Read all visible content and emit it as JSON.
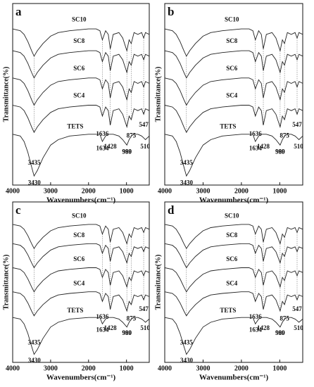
{
  "chart_data": [
    {
      "type": "line",
      "panel_label": "a",
      "x_label": "Wavenumbers(cm⁻¹)",
      "y_label": "Transmittance(%)",
      "xlim": [
        4000,
        400
      ],
      "ylim": [
        0,
        100
      ],
      "xticks": [
        4000,
        3000,
        2000,
        1000
      ],
      "x": [
        4000,
        3800,
        3700,
        3600,
        3500,
        3435,
        3350,
        3200,
        3000,
        2800,
        2500,
        2000,
        1800,
        1700,
        1636,
        1550,
        1480,
        1428,
        1350,
        1200,
        1100,
        990,
        930,
        875,
        800,
        700,
        600,
        547,
        500,
        400
      ],
      "series": [
        {
          "name": "SC10",
          "color": "#222222",
          "values": [
            86,
            85,
            83,
            79,
            74,
            71,
            74,
            78,
            82,
            84,
            85,
            86,
            86,
            85,
            80,
            85,
            83,
            75,
            83,
            84,
            81,
            74,
            80,
            78,
            84,
            83,
            84,
            81,
            84,
            83
          ]
        },
        {
          "name": "SC8",
          "color": "#222222",
          "values": [
            74,
            73,
            71,
            67,
            62,
            59,
            62,
            66,
            70,
            72,
            73,
            74,
            74,
            73,
            68,
            73,
            71,
            63,
            71,
            72,
            69,
            62,
            68,
            66,
            72,
            71,
            72,
            69,
            72,
            71
          ]
        },
        {
          "name": "SC6",
          "color": "#222222",
          "values": [
            59,
            58,
            56,
            52,
            47,
            44,
            47,
            51,
            55,
            57,
            58,
            59,
            59,
            58,
            53,
            58,
            56,
            48,
            56,
            57,
            54,
            47,
            53,
            51,
            57,
            56,
            57,
            54,
            57,
            56
          ]
        },
        {
          "name": "SC4",
          "color": "#222222",
          "values": [
            44,
            43,
            41,
            37,
            32,
            29,
            32,
            36,
            40,
            42,
            43,
            44,
            44,
            43,
            38,
            43,
            41,
            33,
            41,
            42,
            39,
            32,
            38,
            36,
            42,
            41,
            42,
            39,
            42,
            41
          ]
        },
        {
          "name": "TETS",
          "color": "#222222",
          "values": [
            28,
            27,
            24,
            18,
            10,
            5,
            8,
            15,
            22,
            25,
            27,
            28,
            28,
            28,
            24,
            27,
            28,
            28,
            28,
            27,
            25,
            22,
            25,
            27,
            28,
            28,
            27,
            26,
            25,
            27
          ]
        }
      ],
      "peaks": [
        3435,
        1636,
        1428,
        990,
        875,
        547
      ],
      "tets_peaks": [
        3430,
        1634,
        989,
        510
      ]
    },
    {
      "type": "line",
      "panel_label": "b",
      "x_label": "Wavenumbers(cm⁻¹)",
      "y_label": "Transmittance(%)",
      "xlim": [
        4000,
        400
      ],
      "ylim": [
        0,
        100
      ],
      "xticks": [
        4000,
        3000,
        2000,
        1000
      ],
      "x": [
        4000,
        3800,
        3700,
        3600,
        3500,
        3435,
        3350,
        3200,
        3000,
        2800,
        2500,
        2000,
        1800,
        1700,
        1636,
        1550,
        1480,
        1428,
        1350,
        1200,
        1100,
        990,
        930,
        875,
        800,
        700,
        600,
        547,
        500,
        400
      ],
      "series": [
        {
          "name": "SC10",
          "color": "#222222",
          "values": [
            86,
            85,
            83,
            79,
            74,
            71,
            74,
            78,
            82,
            84,
            85,
            86,
            86,
            85,
            80,
            85,
            83,
            75,
            83,
            84,
            81,
            74,
            80,
            78,
            84,
            83,
            84,
            81,
            84,
            83
          ]
        },
        {
          "name": "SC8",
          "color": "#222222",
          "values": [
            74,
            73,
            71,
            67,
            62,
            59,
            62,
            66,
            70,
            72,
            73,
            74,
            74,
            73,
            68,
            73,
            71,
            63,
            71,
            72,
            69,
            62,
            68,
            66,
            72,
            71,
            72,
            69,
            72,
            71
          ]
        },
        {
          "name": "SC6",
          "color": "#222222",
          "values": [
            59,
            58,
            56,
            52,
            47,
            44,
            47,
            51,
            55,
            57,
            58,
            59,
            59,
            58,
            53,
            58,
            56,
            48,
            56,
            57,
            54,
            47,
            53,
            51,
            57,
            56,
            57,
            54,
            57,
            56
          ]
        },
        {
          "name": "SC4",
          "color": "#222222",
          "values": [
            44,
            43,
            41,
            37,
            32,
            29,
            32,
            36,
            40,
            42,
            43,
            44,
            44,
            43,
            38,
            43,
            41,
            33,
            41,
            42,
            39,
            32,
            38,
            36,
            42,
            41,
            42,
            39,
            42,
            41
          ]
        },
        {
          "name": "TETS",
          "color": "#222222",
          "values": [
            28,
            27,
            24,
            18,
            10,
            5,
            8,
            15,
            22,
            25,
            27,
            28,
            28,
            28,
            24,
            27,
            28,
            28,
            28,
            27,
            25,
            22,
            25,
            27,
            28,
            28,
            27,
            26,
            25,
            27
          ]
        }
      ],
      "peaks": [
        3435,
        1636,
        1428,
        990,
        875,
        547
      ],
      "tets_peaks": [
        3430,
        1634,
        989,
        510
      ]
    },
    {
      "type": "line",
      "panel_label": "c",
      "x_label": "Wavenumbers(cm⁻¹)",
      "y_label": "Transmittance(%)",
      "xlim": [
        4000,
        400
      ],
      "ylim": [
        0,
        100
      ],
      "xticks": [
        4000,
        3000,
        2000,
        1000
      ],
      "x": [
        4000,
        3800,
        3700,
        3600,
        3500,
        3435,
        3350,
        3200,
        3000,
        2800,
        2500,
        2000,
        1800,
        1700,
        1636,
        1550,
        1480,
        1428,
        1350,
        1200,
        1100,
        990,
        930,
        875,
        800,
        700,
        600,
        547,
        500,
        400
      ],
      "series": [
        {
          "name": "SC10",
          "color": "#222222",
          "values": [
            86,
            85,
            83,
            79,
            74,
            71,
            74,
            78,
            82,
            84,
            85,
            86,
            86,
            85,
            80,
            85,
            83,
            75,
            83,
            84,
            81,
            74,
            80,
            78,
            84,
            83,
            84,
            81,
            84,
            83
          ]
        },
        {
          "name": "SC8",
          "color": "#222222",
          "values": [
            74,
            73,
            71,
            67,
            62,
            59,
            62,
            66,
            70,
            72,
            73,
            74,
            74,
            73,
            68,
            73,
            71,
            63,
            71,
            72,
            69,
            62,
            68,
            66,
            72,
            71,
            72,
            69,
            72,
            71
          ]
        },
        {
          "name": "SC6",
          "color": "#222222",
          "values": [
            59,
            58,
            56,
            52,
            47,
            44,
            47,
            51,
            55,
            57,
            58,
            59,
            59,
            58,
            53,
            58,
            56,
            48,
            56,
            57,
            54,
            47,
            53,
            51,
            57,
            56,
            57,
            54,
            57,
            56
          ]
        },
        {
          "name": "SC4",
          "color": "#222222",
          "values": [
            44,
            43,
            41,
            37,
            32,
            29,
            32,
            36,
            40,
            42,
            43,
            44,
            44,
            43,
            38,
            43,
            41,
            33,
            41,
            42,
            39,
            32,
            38,
            36,
            42,
            41,
            42,
            39,
            42,
            41
          ]
        },
        {
          "name": "TETS",
          "color": "#222222",
          "values": [
            28,
            27,
            24,
            18,
            10,
            5,
            8,
            15,
            22,
            25,
            27,
            28,
            28,
            28,
            24,
            27,
            28,
            28,
            28,
            27,
            25,
            22,
            25,
            27,
            28,
            28,
            27,
            26,
            25,
            27
          ]
        }
      ],
      "peaks": [
        3435,
        1636,
        1428,
        990,
        875,
        547
      ],
      "tets_peaks": [
        3430,
        1634,
        989,
        510
      ]
    },
    {
      "type": "line",
      "panel_label": "d",
      "x_label": "Wavenumbers(cm⁻¹)",
      "y_label": "Transmittance(%)",
      "xlim": [
        4000,
        400
      ],
      "ylim": [
        0,
        100
      ],
      "xticks": [
        4000,
        3000,
        2000,
        1000
      ],
      "x": [
        4000,
        3800,
        3700,
        3600,
        3500,
        3435,
        3350,
        3200,
        3000,
        2800,
        2500,
        2000,
        1800,
        1700,
        1636,
        1550,
        1480,
        1428,
        1350,
        1200,
        1100,
        990,
        930,
        875,
        800,
        700,
        600,
        547,
        500,
        400
      ],
      "series": [
        {
          "name": "SC10",
          "color": "#222222",
          "values": [
            86,
            85,
            83,
            79,
            74,
            71,
            74,
            78,
            82,
            84,
            85,
            86,
            86,
            85,
            80,
            85,
            83,
            75,
            83,
            84,
            81,
            74,
            80,
            78,
            84,
            83,
            84,
            81,
            84,
            83
          ]
        },
        {
          "name": "SC8",
          "color": "#222222",
          "values": [
            74,
            73,
            71,
            67,
            62,
            59,
            62,
            66,
            70,
            72,
            73,
            74,
            74,
            73,
            68,
            73,
            71,
            63,
            71,
            72,
            69,
            62,
            68,
            66,
            72,
            71,
            72,
            69,
            72,
            71
          ]
        },
        {
          "name": "SC6",
          "color": "#222222",
          "values": [
            59,
            58,
            56,
            52,
            47,
            44,
            47,
            51,
            55,
            57,
            58,
            59,
            59,
            58,
            53,
            58,
            56,
            48,
            56,
            57,
            54,
            47,
            53,
            51,
            57,
            56,
            57,
            54,
            57,
            56
          ]
        },
        {
          "name": "SC4",
          "color": "#222222",
          "values": [
            44,
            43,
            41,
            37,
            32,
            29,
            32,
            36,
            40,
            42,
            43,
            44,
            44,
            43,
            38,
            43,
            41,
            33,
            41,
            42,
            39,
            32,
            38,
            36,
            42,
            41,
            42,
            39,
            42,
            41
          ]
        },
        {
          "name": "TETS",
          "color": "#222222",
          "values": [
            28,
            27,
            24,
            18,
            10,
            5,
            8,
            15,
            22,
            25,
            27,
            28,
            28,
            28,
            24,
            27,
            28,
            28,
            28,
            27,
            25,
            22,
            25,
            27,
            28,
            28,
            27,
            26,
            25,
            27
          ]
        }
      ],
      "peaks": [
        3435,
        1636,
        1428,
        990,
        875,
        547
      ],
      "tets_peaks": [
        3430,
        1634,
        989,
        510
      ]
    }
  ]
}
